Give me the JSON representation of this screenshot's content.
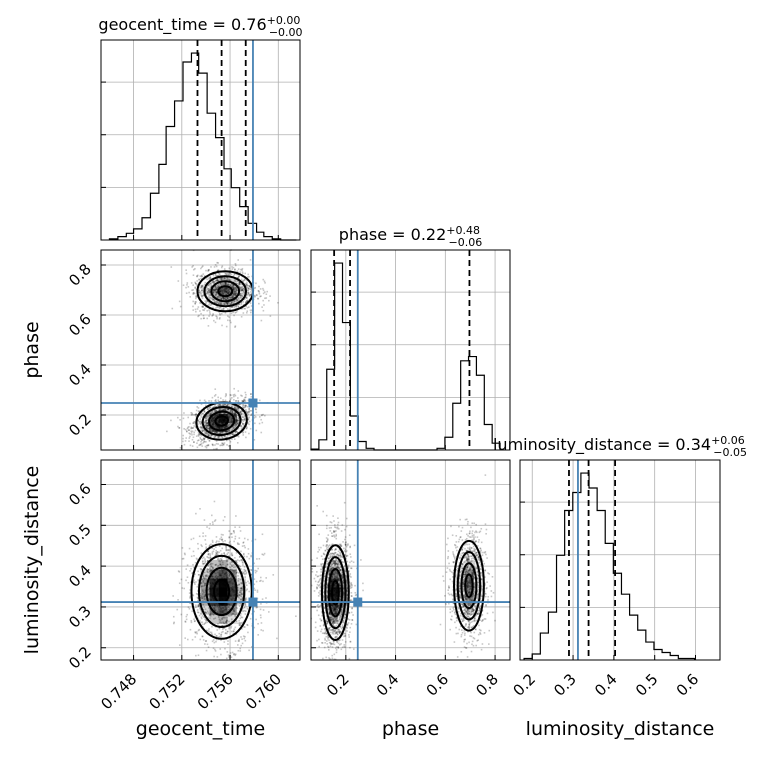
{
  "chart_data": {
    "type": "corner",
    "parameters": [
      {
        "key": "geocent_time",
        "axis_label": "geocent_time",
        "title": {
          "prefix": "geocent_time = ",
          "value": "0.76",
          "plus": "+0.00",
          "minus": "−0.00"
        },
        "range": [
          0.7453,
          0.7618
        ],
        "ticks": [
          0.748,
          0.752,
          0.756,
          0.76
        ],
        "tick_labels": [
          "0.748",
          "0.752",
          "0.756",
          "0.760"
        ],
        "quantiles": [
          0.7533,
          0.7553,
          0.7573
        ],
        "truth": 0.7579,
        "hist_edges": [
          0.746,
          0.7467,
          0.7474,
          0.748,
          0.7487,
          0.7494,
          0.7501,
          0.7507,
          0.7514,
          0.7521,
          0.7528,
          0.7534,
          0.7541,
          0.7548,
          0.7555,
          0.7561,
          0.7568,
          0.7575,
          0.7582,
          0.7588,
          0.7595,
          0.7602,
          0.7609,
          0.7615
        ],
        "hist_counts": [
          1,
          3,
          6,
          10,
          20,
          42,
          68,
          102,
          125,
          160,
          168,
          150,
          114,
          92,
          64,
          47,
          30,
          15,
          7,
          3,
          1,
          0,
          0
        ]
      },
      {
        "key": "phase",
        "axis_label": "phase",
        "title": {
          "prefix": "phase = ",
          "value": "0.22",
          "plus": "+0.48",
          "minus": "−0.06"
        },
        "range": [
          0.06,
          0.86
        ],
        "ticks": [
          0.2,
          0.4,
          0.6,
          0.8
        ],
        "tick_labels": [
          "0.2",
          "0.4",
          "0.6",
          "0.8"
        ],
        "quantiles": [
          0.153,
          0.217,
          0.697
        ],
        "truth": 0.248,
        "hist_edges": [
          0.06,
          0.0917,
          0.1233,
          0.155,
          0.1867,
          0.2183,
          0.25,
          0.2817,
          0.3133,
          0.345,
          0.3767,
          0.4083,
          0.44,
          0.4717,
          0.5033,
          0.535,
          0.5667,
          0.5983,
          0.63,
          0.6617,
          0.6933,
          0.725,
          0.7567,
          0.7883,
          0.82
        ],
        "hist_counts": [
          1,
          12,
          95,
          220,
          150,
          40,
          10,
          2,
          0,
          0,
          0,
          0,
          0,
          0,
          0,
          0,
          2,
          15,
          55,
          105,
          110,
          88,
          30,
          8
        ]
      },
      {
        "key": "luminosity_distance",
        "axis_label": "luminosity_distance",
        "title": {
          "prefix": "luminosity_distance = ",
          "value": "0.34",
          "plus": "+0.06",
          "minus": "−0.05"
        },
        "range": [
          0.17,
          0.66
        ],
        "ticks": [
          0.2,
          0.3,
          0.4,
          0.5,
          0.6
        ],
        "tick_labels": [
          "0.2",
          "0.3",
          "0.4",
          "0.5",
          "0.6"
        ],
        "quantiles": [
          0.29,
          0.338,
          0.403
        ],
        "truth": 0.312,
        "hist_edges": [
          0.18,
          0.1999,
          0.2198,
          0.2396,
          0.2595,
          0.2794,
          0.2993,
          0.3192,
          0.3391,
          0.359,
          0.3788,
          0.3987,
          0.4186,
          0.4385,
          0.4584,
          0.4783,
          0.4982,
          0.5181,
          0.538,
          0.5579,
          0.5777,
          0.5976
        ],
        "hist_counts": [
          1,
          4,
          18,
          32,
          70,
          100,
          112,
          125,
          115,
          100,
          78,
          58,
          44,
          30,
          20,
          12,
          7,
          5,
          3,
          1,
          1
        ]
      }
    ],
    "blobs_2d": [
      {
        "x": "geocent_time",
        "y": "phase",
        "modes": [
          {
            "cx": 0.7553,
            "cy": 0.176,
            "sx": 0.00105,
            "sy": 0.037,
            "rho": 0.3,
            "weight": 1.0
          },
          {
            "cx": 0.7556,
            "cy": 0.695,
            "sx": 0.00115,
            "sy": 0.04,
            "rho": 0.0,
            "weight": 0.75
          }
        ]
      },
      {
        "x": "geocent_time",
        "y": "luminosity_distance",
        "modes": [
          {
            "cx": 0.7553,
            "cy": 0.338,
            "sx": 0.00125,
            "sy": 0.058,
            "rho": 0.0,
            "weight": 1.0
          }
        ]
      },
      {
        "x": "phase",
        "y": "luminosity_distance",
        "modes": [
          {
            "cx": 0.158,
            "cy": 0.335,
            "sx": 0.027,
            "sy": 0.058,
            "rho": 0.0,
            "weight": 1.0
          },
          {
            "cx": 0.695,
            "cy": 0.352,
            "sx": 0.03,
            "sy": 0.055,
            "rho": 0.0,
            "weight": 0.72
          }
        ]
      }
    ],
    "truth_color": "#4682b4",
    "grid": true
  }
}
